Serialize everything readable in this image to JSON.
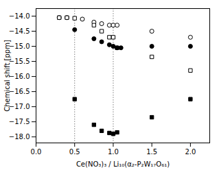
{
  "chart_data": {
    "type": "scatter",
    "xlabel": "Ce(NO₃)₃ / Li₁₀(α₂-P₂W₁₇O₆₁)",
    "ylabel": "Chemical shift [ppm]",
    "xlim": [
      0.0,
      2.25
    ],
    "ylim": [
      -18.2,
      -13.75
    ],
    "xticks": [
      {
        "value": 0.0,
        "label": "0.0"
      },
      0.5,
      {
        "value": 1.0,
        "label": "1.0"
      },
      1.5,
      {
        "value": 2.0,
        "label": "2.0"
      }
    ],
    "yticks": [
      {
        "value": -18.0,
        "label": "−18.0"
      },
      {
        "value": -17.5,
        "label": "−17.5"
      },
      {
        "value": -17.0,
        "label": "−17.0"
      },
      {
        "value": -16.5,
        "label": "−16.5"
      },
      {
        "value": -16.0,
        "label": "−16.0"
      },
      {
        "value": -15.5,
        "label": "−15.5"
      },
      {
        "value": -15.0,
        "label": "−15.0"
      },
      {
        "value": -14.5,
        "label": "−14.5"
      },
      {
        "value": -14.0,
        "label": "−14.0"
      }
    ],
    "grid": false,
    "vlines": [
      0.5,
      1.0
    ],
    "series": [
      {
        "marker": "circle-open",
        "color": "black",
        "x": [
          0.3,
          0.4,
          0.6,
          0.75,
          0.85,
          0.95,
          1.0,
          1.05,
          1.5,
          2.0
        ],
        "values": [
          -14.05,
          -14.05,
          -14.1,
          -14.2,
          -14.25,
          -14.3,
          -14.3,
          -14.3,
          -14.5,
          -14.7
        ]
      },
      {
        "marker": "square-open",
        "color": "black",
        "x": [
          0.3,
          0.4,
          0.5,
          0.75,
          0.85,
          0.95,
          1.0,
          1.05,
          1.5,
          2.0
        ],
        "values": [
          -14.05,
          -14.05,
          -14.07,
          -14.3,
          -14.5,
          -14.7,
          -14.7,
          -15.05,
          -15.35,
          -15.8
        ]
      },
      {
        "marker": "circle",
        "color": "black",
        "x": [
          0.5,
          0.75,
          0.85,
          0.95,
          1.0,
          1.05,
          1.1,
          1.5,
          2.0
        ],
        "values": [
          -14.45,
          -14.75,
          -14.85,
          -14.95,
          -15.0,
          -15.05,
          -15.05,
          -15.0,
          -15.0
        ]
      },
      {
        "marker": "square",
        "color": "black",
        "x": [
          0.5,
          0.75,
          0.85,
          0.95,
          1.0,
          1.05,
          1.5,
          2.0
        ],
        "values": [
          -16.75,
          -17.6,
          -17.8,
          -17.87,
          -17.9,
          -17.85,
          -17.35,
          -16.75
        ]
      }
    ]
  }
}
